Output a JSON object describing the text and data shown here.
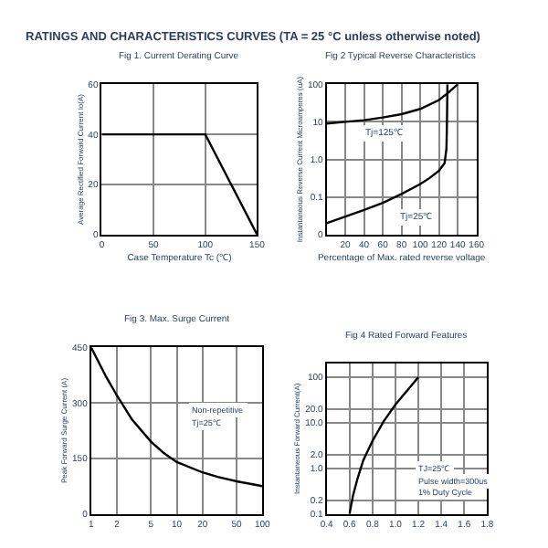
{
  "chart_data": [
    {
      "type": "line",
      "title": "Fig 1. Current Derating Curve",
      "annotations": [
        "RATINGS AND CHARACTERISTICS CURVES (TA = 25 °C unless otherwise noted)"
      ],
      "xlabel": "Case Temperature Tc (℃)",
      "ylabel": "Average Rectified Forward Current Io(A)",
      "xlim": [
        0,
        150
      ],
      "xticks": [
        0,
        50,
        100,
        150
      ],
      "ylim": [
        0,
        60
      ],
      "yticks": [
        0,
        20,
        40,
        60
      ],
      "grid": true,
      "series": [
        {
          "color": "#000000",
          "x": [
            0,
            100,
            150
          ],
          "values": [
            40,
            40,
            0
          ]
        }
      ]
    },
    {
      "type": "line",
      "title": "Fig 2 Typical Reverse Characteristics",
      "xlabel": "Percentage of Max. rated reverse voltage",
      "ylabel": "Instantaneous Reverse Current Microamperes (uA)",
      "log": "y",
      "xlim": [
        0,
        160
      ],
      "xticks": [
        20,
        40,
        60,
        80,
        100,
        120,
        140,
        160
      ],
      "ylim": [
        0.01,
        100
      ],
      "yticks": [
        {
          "value": 0.01,
          "label": "0"
        },
        0.1,
        {
          "value": 1,
          "label": "1.0"
        },
        10,
        100
      ],
      "grid": true,
      "annotations": [
        {
          "text": "Tj=125℃",
          "x": 60,
          "y": 5
        },
        {
          "text": "Tj=25℃",
          "x": 95,
          "y": 0.03
        }
      ],
      "series": [
        {
          "color": "#000000",
          "x": [
            0,
            20,
            40,
            60,
            80,
            100,
            120,
            130,
            140
          ],
          "values": [
            9,
            10,
            11,
            13,
            16,
            22,
            38,
            60,
            100
          ]
        },
        {
          "color": "#000000",
          "x": [
            0,
            20,
            40,
            60,
            80,
            100,
            110,
            120,
            126,
            128,
            128.5,
            129
          ],
          "values": [
            0.02,
            0.03,
            0.045,
            0.07,
            0.12,
            0.22,
            0.32,
            0.5,
            0.8,
            2,
            10,
            100
          ]
        }
      ]
    },
    {
      "type": "line",
      "title": "Fig 3. Max. Surge Current",
      "ylabel": "Peak Forward Surge Current (A)",
      "log": "x",
      "xlim": [
        1,
        100
      ],
      "xticks": [
        1,
        2,
        5,
        10,
        20,
        50,
        100
      ],
      "ylim": [
        0,
        450
      ],
      "yticks": [
        0,
        150,
        300,
        450
      ],
      "grid": true,
      "annotations": [
        "Non-repetitive",
        "Tj=25℃"
      ],
      "series": [
        {
          "color": "#000000",
          "x": [
            1,
            1.5,
            2,
            3,
            5,
            7,
            10,
            20,
            30,
            50,
            100
          ],
          "values": [
            450,
            370,
            320,
            255,
            195,
            165,
            140,
            112,
            100,
            88,
            75
          ]
        }
      ]
    },
    {
      "type": "line",
      "title": "Fig 4 Rated Forward Features",
      "ylabel": "Instantaneous Forward Current(A)",
      "log": "y",
      "xlim": [
        0.4,
        1.8
      ],
      "xticks": [
        0.4,
        0.6,
        0.8,
        {
          "value": 1.0,
          "label": "1.0"
        },
        1.2,
        1.4,
        1.6,
        1.8
      ],
      "ylim": [
        0.1,
        200
      ],
      "yticks": [
        0.1,
        0.2,
        {
          "value": 1,
          "label": "1.0"
        },
        {
          "value": 2,
          "label": "2.0"
        },
        {
          "value": 10,
          "label": "10.0"
        },
        {
          "value": 20,
          "label": "20.0"
        },
        100
      ],
      "grid": true,
      "annotations": [
        "TJ=25℃",
        "Pulse width=300us",
        "1% Duty Cycle"
      ],
      "series": [
        {
          "color": "#000000",
          "x": [
            0.6,
            0.63,
            0.67,
            0.72,
            0.8,
            0.9,
            1.0,
            1.1,
            1.2
          ],
          "values": [
            0.1,
            0.25,
            0.6,
            1.5,
            4,
            11,
            25,
            50,
            100
          ]
        }
      ]
    }
  ]
}
